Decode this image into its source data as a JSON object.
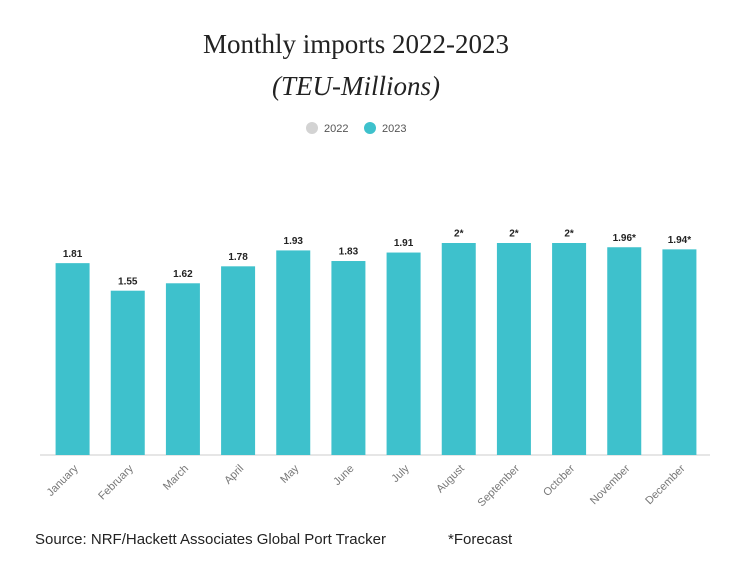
{
  "chart_data": {
    "type": "bar",
    "title": "Monthly imports 2022-2023",
    "subtitle": "(TEU-Millions)",
    "categories": [
      "January",
      "February",
      "March",
      "April",
      "May",
      "June",
      "July",
      "August",
      "September",
      "October",
      "November",
      "December"
    ],
    "series": [
      {
        "name": "2022",
        "color": "#d3d3d3",
        "values": [
          null,
          null,
          null,
          null,
          null,
          null,
          null,
          null,
          null,
          null,
          null,
          null
        ]
      },
      {
        "name": "2023",
        "color": "#3ec1cc",
        "values": [
          1.81,
          1.55,
          1.62,
          1.78,
          1.93,
          1.83,
          1.91,
          2,
          2,
          2,
          1.96,
          1.94
        ],
        "value_labels": [
          "1.81",
          "1.55",
          "1.62",
          "1.78",
          "1.93",
          "1.83",
          "1.91",
          "2*",
          "2*",
          "2*",
          "1.96*",
          "1.94*"
        ]
      }
    ],
    "ylim": [
      0,
      2
    ],
    "legend": "top",
    "source": "Source: NRF/Hackett Associates Global Port Tracker",
    "note": "*Forecast"
  }
}
